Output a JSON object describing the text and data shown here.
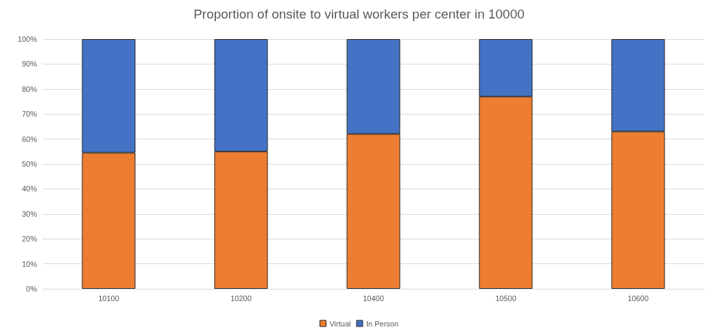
{
  "chart_data": {
    "type": "bar",
    "title": "Proportion of onsite to virtual workers per center in 10000",
    "categories": [
      "10100",
      "10200",
      "10400",
      "10500",
      "10600"
    ],
    "series": [
      {
        "name": "Virtual",
        "color": "#ed7d31",
        "values": [
          54.5,
          55,
          62,
          77,
          63
        ]
      },
      {
        "name": "In Person",
        "color": "#4472c4",
        "values": [
          45.5,
          45,
          38,
          23,
          37
        ]
      }
    ],
    "stacked": true,
    "ylim": [
      0,
      100
    ],
    "yticks": [
      {
        "value": 0,
        "label": "0%"
      },
      {
        "value": 10,
        "label": "10%"
      },
      {
        "value": 20,
        "label": "20%"
      },
      {
        "value": 30,
        "label": "30%"
      },
      {
        "value": 40,
        "label": "40%"
      },
      {
        "value": 50,
        "label": "50%"
      },
      {
        "value": 60,
        "label": "60%"
      },
      {
        "value": 70,
        "label": "70%"
      },
      {
        "value": 80,
        "label": "80%"
      },
      {
        "value": 90,
        "label": "90%"
      },
      {
        "value": 100,
        "label": "100%"
      }
    ],
    "grid": "y",
    "legend": "bottom"
  }
}
